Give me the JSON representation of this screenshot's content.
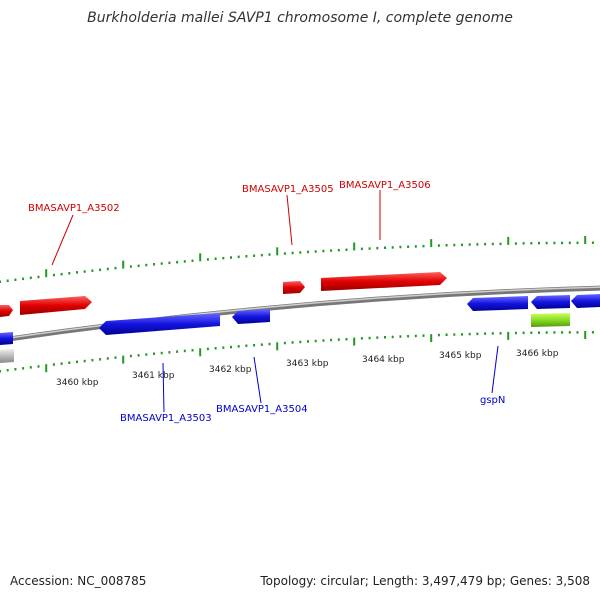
{
  "title": "Burkholderia mallei SAVP1 chromosome I, complete genome",
  "footer": {
    "accession": "Accession: NC_008785",
    "summary": "Topology: circular; Length: 3,497,479 bp; Genes: 3,508"
  },
  "colors": {
    "forward": "#dd0000",
    "reverse": "#1010dd",
    "rna": "#88dd22",
    "other": "#bbbbbb",
    "backbone": "#888888",
    "ticks": "#229922",
    "forward_label": "#cc0000",
    "reverse_label": "#0000cc"
  },
  "scale_labels": [
    "3460 kbp",
    "3461 kbp",
    "3462 kbp",
    "3463 kbp",
    "3464 kbp",
    "3465 kbp",
    "3466 kbp"
  ],
  "labels": {
    "forward": [
      "BMASAVP1_A3502",
      "BMASAVP1_A3505",
      "BMASAVP1_A3506"
    ],
    "reverse": [
      "BMASAVP1_A3503",
      "BMASAVP1_A3504",
      "gspN"
    ]
  }
}
